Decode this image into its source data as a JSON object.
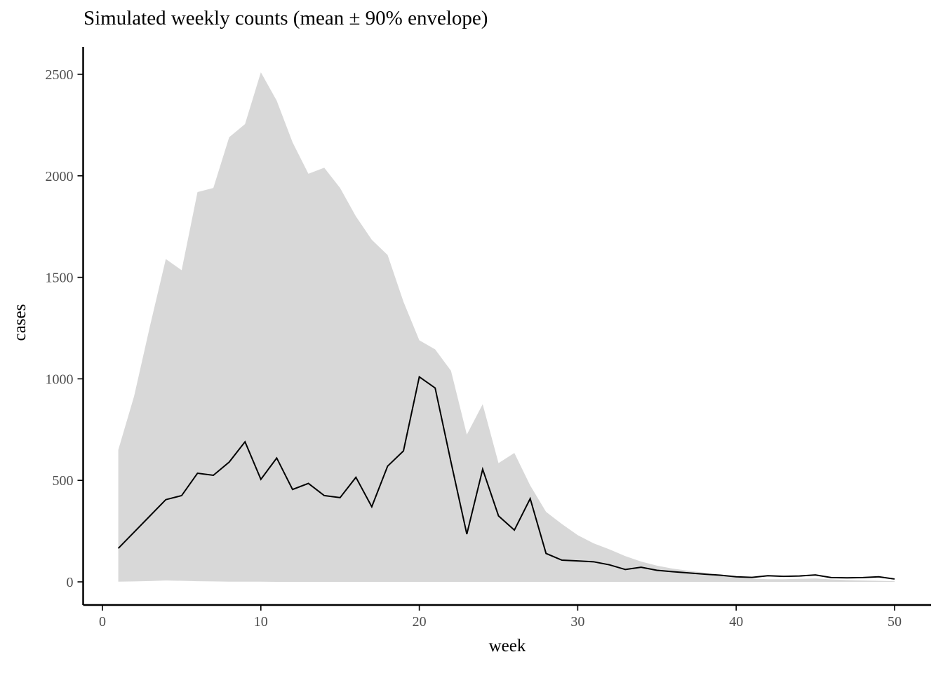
{
  "colors": {
    "background": "#ffffff",
    "envelope_fill": "#d8d8d8",
    "mean_line": "#000000",
    "axis_line": "#000000",
    "tick_mark": "#000000",
    "tick_label": "#4d4d4d",
    "title_text": "#000000"
  },
  "chart_data": {
    "type": "line",
    "title": "Simulated weekly counts (mean ± 90% envelope)",
    "xlabel": "week",
    "ylabel": "cases",
    "legend": "none",
    "grid": false,
    "x_ticks": [
      0,
      10,
      20,
      30,
      40,
      50
    ],
    "y_ticks": [
      0,
      500,
      1000,
      1500,
      2000,
      2500
    ],
    "xlim": [
      -1.2,
      52.3
    ],
    "ylim": [
      0,
      2630
    ],
    "x": [
      1,
      2,
      3,
      4,
      5,
      6,
      7,
      8,
      9,
      10,
      11,
      12,
      13,
      14,
      15,
      16,
      17,
      18,
      19,
      20,
      21,
      22,
      23,
      24,
      25,
      26,
      27,
      28,
      29,
      30,
      31,
      32,
      33,
      34,
      35,
      36,
      37,
      38,
      39,
      40,
      41,
      42,
      43,
      44,
      45,
      46,
      47,
      48,
      49,
      50
    ],
    "series": [
      {
        "name": "mean",
        "style": "line",
        "values": [
          165,
          245,
          325,
          405,
          425,
          535,
          525,
          590,
          690,
          505,
          610,
          455,
          485,
          425,
          415,
          515,
          370,
          570,
          645,
          1010,
          955,
          590,
          235,
          555,
          325,
          255,
          410,
          140,
          107,
          103,
          99,
          84,
          61,
          72,
          57,
          50,
          44,
          38,
          33,
          25,
          22,
          30,
          27,
          29,
          34,
          21,
          20,
          21,
          25,
          14
        ]
      },
      {
        "name": "envelope_upper",
        "style": "area-upper-bound",
        "values": [
          650,
          915,
          1260,
          1590,
          1535,
          1920,
          1940,
          2190,
          2255,
          2510,
          2370,
          2165,
          2010,
          2040,
          1940,
          1800,
          1685,
          1610,
          1380,
          1190,
          1145,
          1040,
          725,
          875,
          585,
          635,
          475,
          345,
          285,
          230,
          190,
          160,
          127,
          100,
          80,
          65,
          55,
          45,
          30,
          22,
          16,
          13,
          13,
          15,
          17,
          12,
          9,
          7,
          5,
          3
        ]
      },
      {
        "name": "envelope_lower",
        "style": "area-lower-bound",
        "values": [
          1,
          2,
          4,
          7,
          5,
          3,
          2,
          1,
          1,
          1,
          0,
          0,
          0,
          0,
          0,
          0,
          0,
          0,
          0,
          0,
          0,
          0,
          0,
          0,
          0,
          0,
          0,
          0,
          0,
          0,
          0,
          0,
          0,
          0,
          0,
          0,
          0,
          0,
          0,
          0,
          0,
          0,
          0,
          0,
          0,
          0,
          0,
          0,
          0,
          0
        ]
      }
    ]
  }
}
